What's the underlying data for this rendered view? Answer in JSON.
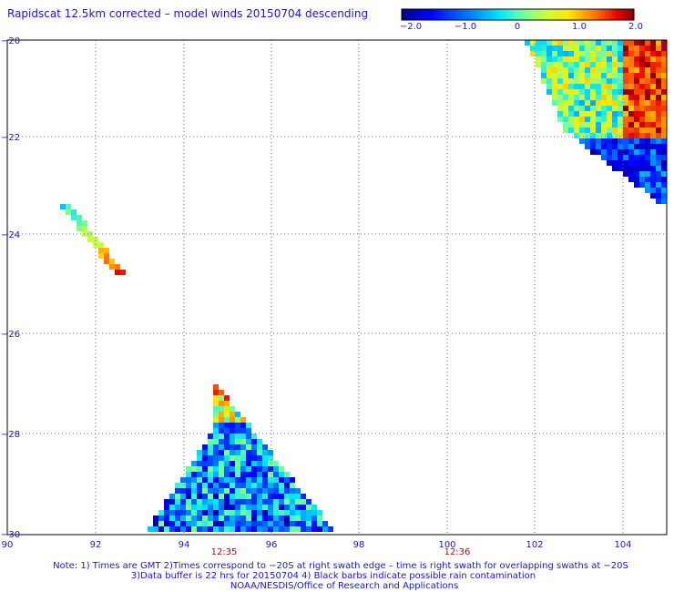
{
  "title": "Rapidscat 12.5km corrected – model winds 20150704 descending",
  "colorbar": {
    "labels": [
      "−2.0",
      "−1.0",
      "0",
      "1.0",
      "2.0"
    ],
    "range": [
      -2.0,
      2.0
    ]
  },
  "axes": {
    "x_ticks": [
      "90",
      "92",
      "94",
      "96",
      "98",
      "100",
      "102",
      "104"
    ],
    "y_ticks": [
      "−20",
      "−22",
      "−24",
      "−26",
      "−28",
      "−30"
    ],
    "lon_range": [
      90,
      105
    ],
    "lat_range": [
      -30,
      -20
    ]
  },
  "time_labels": [
    {
      "text": "12:35",
      "lon": 94.9
    },
    {
      "text": "12:36",
      "lon": 100.2
    }
  ],
  "notes": {
    "line1": "Note: 1) Times are GMT 2)Times correspond to −20S at right swath edge – time is right swath for overlapping swaths at −20S",
    "line2": "3)Data buffer is 22 hrs for 20150704 4) Black barbs indicate possible rain contamination",
    "line3": "NOAA/NESDIS/Office of Research and Applications"
  }
}
